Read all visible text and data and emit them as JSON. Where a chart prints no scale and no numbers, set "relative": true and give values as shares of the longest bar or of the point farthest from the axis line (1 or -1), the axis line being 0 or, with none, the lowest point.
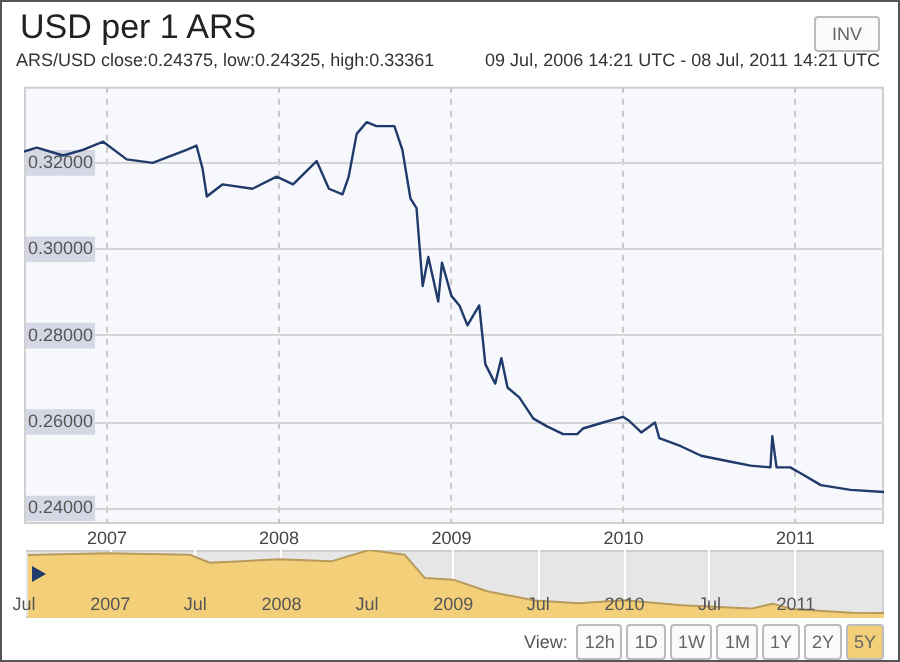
{
  "chart_data": [
    {
      "type": "line",
      "title": "USD per 1 ARS",
      "subtitle": "ARS/USD   close:0.24375, low:0.24325, high:0.33361",
      "annotations": [
        "09 Jul, 2006 14:21 UTC - 08 Jul, 2011 14:21 UTC",
        "INV",
        "View:",
        "12h",
        "1D",
        "1W",
        "1M",
        "1Y",
        "2Y",
        "5Y"
      ],
      "x": [
        "2006-07-09",
        "2006-08-05",
        "2006-09-30",
        "2006-11-11",
        "2006-12-24",
        "2007-02-12",
        "2007-04-08",
        "2007-06-19",
        "2007-07-10",
        "2007-07-23",
        "2007-08-01",
        "2007-09-03",
        "2007-11-06",
        "2007-12-27",
        "2008-01-31",
        "2008-03-21",
        "2008-04-16",
        "2008-05-15",
        "2008-05-28",
        "2008-06-14",
        "2008-07-05",
        "2008-07-26",
        "2008-09-02",
        "2008-09-19",
        "2008-10-06",
        "2008-10-19",
        "2008-11-01",
        "2008-11-13",
        "2008-12-04",
        "2008-12-12",
        "2009-01-01",
        "2009-01-18",
        "2009-02-04",
        "2009-03-01",
        "2009-03-14",
        "2009-04-04",
        "2009-04-17",
        "2009-04-30",
        "2009-05-25",
        "2009-06-24",
        "2009-07-23",
        "2009-08-26",
        "2009-09-25",
        "2009-10-07",
        "2009-11-19",
        "2009-12-31",
        "2010-01-13",
        "2010-02-08",
        "2010-03-09",
        "2010-03-18",
        "2010-05-03",
        "2010-06-15",
        "2010-08-17",
        "2010-09-28",
        "2010-11-09",
        "2010-11-13",
        "2010-11-22",
        "2010-12-21",
        "2011-01-13",
        "2011-02-24",
        "2011-04-28",
        "2011-07-08"
      ],
      "series": [
        {
          "color": "#1f3a6b",
          "values": [
            0.3226,
            0.3235,
            0.3217,
            0.323,
            0.3249,
            0.3208,
            0.32,
            0.323,
            0.324,
            0.3186,
            0.3122,
            0.315,
            0.314,
            0.3168,
            0.315,
            0.3204,
            0.314,
            0.3127,
            0.3168,
            0.3267,
            0.3294,
            0.3285,
            0.3285,
            0.323,
            0.3118,
            0.3095,
            0.2915,
            0.2982,
            0.2879,
            0.2969,
            0.2892,
            0.287,
            0.2824,
            0.287,
            0.2734,
            0.2689,
            0.2748,
            0.268,
            0.2657,
            0.2608,
            0.259,
            0.2572,
            0.2572,
            0.2585,
            0.2599,
            0.2612,
            0.2603,
            0.2576,
            0.2599,
            0.2563,
            0.2544,
            0.2522,
            0.2508,
            0.2499,
            0.2495,
            0.2567,
            0.2495,
            0.2495,
            0.2481,
            0.2454,
            0.2443,
            0.2438
          ]
        }
      ],
      "xlim": [
        "2006-07-09",
        "2011-07-08"
      ],
      "xticks": [
        "2007",
        "2008",
        "2009",
        "2010",
        "2011"
      ],
      "ylim": [
        0.2364,
        0.3376
      ],
      "yticks": [
        {
          "value": 0.24,
          "label": "0.24000"
        },
        {
          "value": 0.26,
          "label": "0.26000"
        },
        {
          "value": 0.28,
          "label": "0.28000"
        },
        {
          "value": 0.3,
          "label": "0.30000"
        },
        {
          "value": 0.32,
          "label": "0.32000"
        }
      ],
      "grid": true,
      "legend": false,
      "marker": "none",
      "line_style": "solid"
    },
    {
      "type": "area",
      "relative": true,
      "x": [
        "2006-07-09",
        "2006-12-24",
        "2007-06-19",
        "2007-08-01",
        "2007-12-27",
        "2008-04-16",
        "2008-07-05",
        "2008-09-19",
        "2008-11-01",
        "2009-01-01",
        "2009-03-14",
        "2009-06-24",
        "2009-09-25",
        "2009-12-31",
        "2010-05-03",
        "2010-09-28",
        "2010-11-13",
        "2010-12-21",
        "2011-04-28",
        "2011-07-08"
      ],
      "series": [
        {
          "color": "#f3cf7a",
          "values": [
            0.928,
            0.951,
            0.931,
            0.813,
            0.863,
            0.833,
            1,
            0.931,
            0.589,
            0.564,
            0.393,
            0.256,
            0.217,
            0.26,
            0.187,
            0.138,
            0.211,
            0.134,
            0.077,
            0.072
          ]
        }
      ],
      "xlim": [
        "2006-07-01",
        "2011-07-08"
      ],
      "xticks": [
        {
          "value": "2006-07",
          "label": "Jul"
        },
        "2007",
        {
          "value": "2007-07",
          "label": "Jul"
        },
        "2008",
        {
          "value": "2008-07",
          "label": "Jul"
        },
        "2009",
        {
          "value": "2009-07",
          "label": "Jul"
        },
        "2010",
        {
          "value": "2010-07",
          "label": "Jul"
        },
        "2011"
      ],
      "tick_labels": "x",
      "grid": "x",
      "legend": false
    }
  ]
}
